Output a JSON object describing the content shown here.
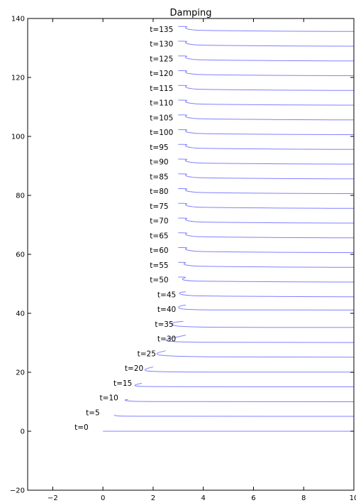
{
  "chart_data": {
    "type": "line",
    "title": "Damping",
    "xlabel": "",
    "ylabel": "",
    "xlim": [
      -3,
      10
    ],
    "ylim": [
      -20,
      140
    ],
    "x_ticks": [
      -2,
      0,
      2,
      4,
      6,
      8,
      10
    ],
    "y_ticks": [
      -20,
      0,
      20,
      40,
      60,
      80,
      100,
      120,
      140
    ],
    "grid": false,
    "legend": "none",
    "line_color": "#8080ff",
    "series": [
      {
        "label": "t=0",
        "offset": 0,
        "points": [
          [
            0,
            0
          ],
          [
            10,
            0
          ]
        ]
      },
      {
        "label": "t=5",
        "offset": 5,
        "points": [
          [
            0.45,
            5.6
          ],
          [
            0.5,
            5.2
          ],
          [
            1,
            5.1
          ],
          [
            4,
            5.05
          ],
          [
            10,
            5.05
          ]
        ]
      },
      {
        "label": "t=10",
        "offset": 10,
        "points": [
          [
            1,
            10.8
          ],
          [
            0.85,
            10.6
          ],
          [
            0.95,
            10.3
          ],
          [
            1.4,
            10.1
          ],
          [
            4,
            10
          ],
          [
            10,
            10
          ]
        ]
      },
      {
        "label": "t=15",
        "offset": 15,
        "points": [
          [
            1.55,
            16.3
          ],
          [
            1.3,
            15.8
          ],
          [
            1.25,
            15.4
          ],
          [
            1.45,
            15.2
          ],
          [
            2.5,
            15.1
          ],
          [
            6,
            15.05
          ],
          [
            10,
            15.05
          ]
        ]
      },
      {
        "label": "t=20",
        "offset": 20,
        "points": [
          [
            2,
            21.8
          ],
          [
            1.7,
            21.2
          ],
          [
            1.65,
            20.6
          ],
          [
            1.9,
            20.3
          ],
          [
            3,
            20.1
          ],
          [
            6,
            20.05
          ],
          [
            10,
            20.05
          ]
        ]
      },
      {
        "label": "t=25",
        "offset": 25,
        "points": [
          [
            2.5,
            27.3
          ],
          [
            2.15,
            26.6
          ],
          [
            2.15,
            26
          ],
          [
            2.45,
            25.6
          ],
          [
            3.5,
            25.3
          ],
          [
            6,
            25.1
          ],
          [
            10,
            25.1
          ]
        ]
      },
      {
        "label": "t=30",
        "offset": 30,
        "points": [
          [
            3.3,
            32.6
          ],
          [
            2.8,
            31.7
          ],
          [
            2.5,
            31
          ],
          [
            2.55,
            30.6
          ],
          [
            3,
            30.3
          ],
          [
            4.5,
            30.1
          ],
          [
            10,
            30.1
          ]
        ]
      },
      {
        "label": "t=35",
        "offset": 35,
        "points": [
          [
            3.2,
            37.3
          ],
          [
            2.9,
            37
          ],
          [
            2.7,
            36.5
          ],
          [
            2.8,
            35.9
          ],
          [
            3.1,
            35.5
          ],
          [
            4.5,
            35.2
          ],
          [
            10,
            35.2
          ]
        ]
      },
      {
        "label": "t=40",
        "offset": 40,
        "points": [
          [
            3.3,
            42.8
          ],
          [
            3.05,
            42.5
          ],
          [
            3,
            41.9
          ],
          [
            3.1,
            41.5
          ],
          [
            3.6,
            41.2
          ],
          [
            5,
            41.1
          ],
          [
            10,
            41.1
          ]
        ]
      },
      {
        "label": "t=45",
        "offset": 45,
        "points": [
          [
            3.3,
            47.3
          ],
          [
            3.05,
            47.1
          ],
          [
            3.05,
            46.6
          ],
          [
            3.2,
            46.2
          ],
          [
            3.9,
            45.8
          ],
          [
            10,
            45.6
          ]
        ]
      },
      {
        "label": "t=50",
        "offset": 50,
        "points": [
          [
            3,
            52.3
          ],
          [
            3.35,
            52.3
          ],
          [
            3.15,
            51.7
          ],
          [
            3.2,
            51.2
          ],
          [
            3.9,
            50.8
          ],
          [
            10,
            50.6
          ]
        ]
      },
      {
        "label": "t=55",
        "offset": 55,
        "points": [
          [
            3,
            57.3
          ],
          [
            3.35,
            57.3
          ],
          [
            3.2,
            56.8
          ],
          [
            3.3,
            56.3
          ],
          [
            4,
            55.8
          ],
          [
            10,
            55.6
          ]
        ]
      },
      {
        "label": "t=60",
        "offset": 60,
        "points": [
          [
            3,
            62.3
          ],
          [
            3.4,
            62.3
          ],
          [
            3.25,
            61.8
          ],
          [
            3.4,
            61.3
          ],
          [
            4,
            60.8
          ],
          [
            10,
            60.6
          ]
        ]
      },
      {
        "label": "t=65",
        "offset": 65,
        "points": [
          [
            3,
            67.3
          ],
          [
            3.4,
            67.3
          ],
          [
            3.25,
            66.8
          ],
          [
            3.4,
            66.3
          ],
          [
            4,
            65.8
          ],
          [
            10,
            65.6
          ]
        ]
      },
      {
        "label": "t=70",
        "offset": 70,
        "points": [
          [
            3,
            72.3
          ],
          [
            3.4,
            72.3
          ],
          [
            3.25,
            71.8
          ],
          [
            3.4,
            71.3
          ],
          [
            4,
            70.8
          ],
          [
            10,
            70.6
          ]
        ]
      },
      {
        "label": "t=75",
        "offset": 75,
        "points": [
          [
            3,
            77.3
          ],
          [
            3.4,
            77.3
          ],
          [
            3.25,
            76.8
          ],
          [
            3.4,
            76.3
          ],
          [
            4,
            75.8
          ],
          [
            10,
            75.6
          ]
        ]
      },
      {
        "label": "t=80",
        "offset": 80,
        "points": [
          [
            3,
            82.3
          ],
          [
            3.4,
            82.3
          ],
          [
            3.25,
            81.8
          ],
          [
            3.4,
            81.3
          ],
          [
            4,
            80.8
          ],
          [
            10,
            80.6
          ]
        ]
      },
      {
        "label": "t=85",
        "offset": 85,
        "points": [
          [
            3,
            87.3
          ],
          [
            3.4,
            87.3
          ],
          [
            3.25,
            86.8
          ],
          [
            3.4,
            86.3
          ],
          [
            4,
            85.8
          ],
          [
            10,
            85.6
          ]
        ]
      },
      {
        "label": "t=90",
        "offset": 90,
        "points": [
          [
            3,
            92.3
          ],
          [
            3.4,
            92.3
          ],
          [
            3.25,
            91.8
          ],
          [
            3.4,
            91.3
          ],
          [
            4,
            90.8
          ],
          [
            10,
            90.6
          ]
        ]
      },
      {
        "label": "t=95",
        "offset": 95,
        "points": [
          [
            3,
            97.3
          ],
          [
            3.4,
            97.3
          ],
          [
            3.25,
            96.8
          ],
          [
            3.4,
            96.3
          ],
          [
            4,
            95.8
          ],
          [
            10,
            95.6
          ]
        ]
      },
      {
        "label": "t=100",
        "offset": 100,
        "points": [
          [
            3,
            102.3
          ],
          [
            3.4,
            102.3
          ],
          [
            3.25,
            101.8
          ],
          [
            3.4,
            101.3
          ],
          [
            4,
            100.8
          ],
          [
            10,
            100.6
          ]
        ]
      },
      {
        "label": "t=105",
        "offset": 105,
        "points": [
          [
            3,
            107.3
          ],
          [
            3.4,
            107.3
          ],
          [
            3.25,
            106.8
          ],
          [
            3.4,
            106.3
          ],
          [
            4,
            105.8
          ],
          [
            10,
            105.6
          ]
        ]
      },
      {
        "label": "t=110",
        "offset": 110,
        "points": [
          [
            3,
            112.3
          ],
          [
            3.4,
            112.3
          ],
          [
            3.25,
            111.8
          ],
          [
            3.4,
            111.3
          ],
          [
            4,
            110.8
          ],
          [
            10,
            110.6
          ]
        ]
      },
      {
        "label": "t=115",
        "offset": 115,
        "points": [
          [
            3,
            117.3
          ],
          [
            3.4,
            117.3
          ],
          [
            3.25,
            116.8
          ],
          [
            3.4,
            116.3
          ],
          [
            4,
            115.8
          ],
          [
            10,
            115.6
          ]
        ]
      },
      {
        "label": "t=120",
        "offset": 120,
        "points": [
          [
            3,
            122.3
          ],
          [
            3.4,
            122.3
          ],
          [
            3.25,
            121.8
          ],
          [
            3.4,
            121.3
          ],
          [
            4,
            120.8
          ],
          [
            10,
            120.6
          ]
        ]
      },
      {
        "label": "t=125",
        "offset": 125,
        "points": [
          [
            3,
            127.3
          ],
          [
            3.4,
            127.3
          ],
          [
            3.25,
            126.8
          ],
          [
            3.4,
            126.3
          ],
          [
            4,
            125.8
          ],
          [
            10,
            125.6
          ]
        ]
      },
      {
        "label": "t=130",
        "offset": 130,
        "points": [
          [
            3,
            132.3
          ],
          [
            3.4,
            132.3
          ],
          [
            3.25,
            131.8
          ],
          [
            3.4,
            131.3
          ],
          [
            4,
            130.8
          ],
          [
            10,
            130.6
          ]
        ]
      },
      {
        "label": "t=135",
        "offset": 135,
        "points": [
          [
            3,
            137.3
          ],
          [
            3.4,
            137.3
          ],
          [
            3.25,
            136.8
          ],
          [
            3.4,
            136.3
          ],
          [
            4,
            135.8
          ],
          [
            10,
            135.6
          ]
        ]
      }
    ]
  }
}
